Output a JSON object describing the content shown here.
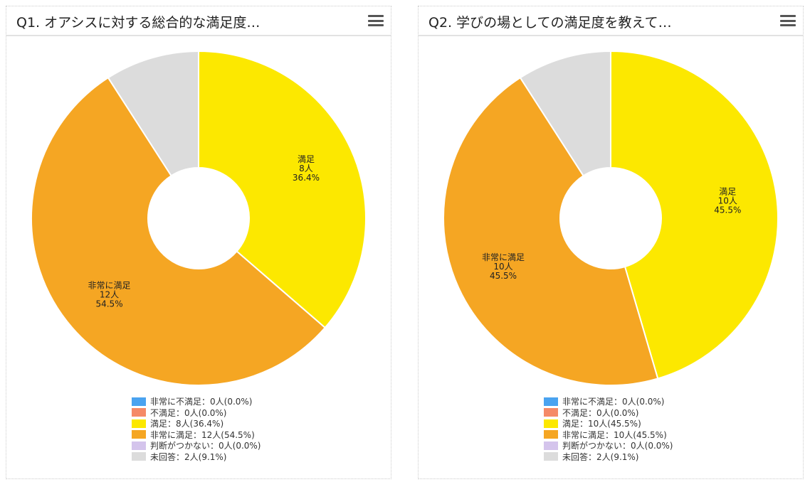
{
  "colors": {
    "非常に不満足": "#4aa3f0",
    "不満足": "#f58a67",
    "満足": "#fce800",
    "非常に満足": "#f5a623",
    "判断がつかない": "#d4c4ec",
    "未回答": "#dcdcdc"
  },
  "chart_data": [
    {
      "type": "pie",
      "title": "Q1. オアシスに対する総合的な満足度…",
      "categories": [
        "非常に不満足",
        "不満足",
        "満足",
        "非常に満足",
        "判断がつかない",
        "未回答"
      ],
      "values": [
        0,
        0,
        8,
        12,
        0,
        2
      ],
      "percents": [
        0.0,
        0.0,
        36.4,
        54.5,
        0.0,
        9.1
      ],
      "unit": "人",
      "legend": [
        "非常に不満足：0人(0.0%)",
        "不満足：0人(0.0%)",
        "満足：8人(36.4%)",
        "非常に満足：12人(54.5%)",
        "判断がつかない：0人(0.0%)",
        "未回答：2人(9.1%)"
      ],
      "legend_position": "bottom"
    },
    {
      "type": "pie",
      "title": "Q2. 学びの場としての満足度を教えて…",
      "categories": [
        "非常に不満足",
        "不満足",
        "満足",
        "非常に満足",
        "判断がつかない",
        "未回答"
      ],
      "values": [
        0,
        0,
        10,
        10,
        0,
        2
      ],
      "percents": [
        0.0,
        0.0,
        45.5,
        45.5,
        0.0,
        9.1
      ],
      "unit": "人",
      "legend": [
        "非常に不満足：0人(0.0%)",
        "不満足：0人(0.0%)",
        "満足：10人(45.5%)",
        "非常に満足：10人(45.5%)",
        "判断がつかない：0人(0.0%)",
        "未回答：2人(9.1%)"
      ],
      "legend_position": "bottom"
    }
  ]
}
